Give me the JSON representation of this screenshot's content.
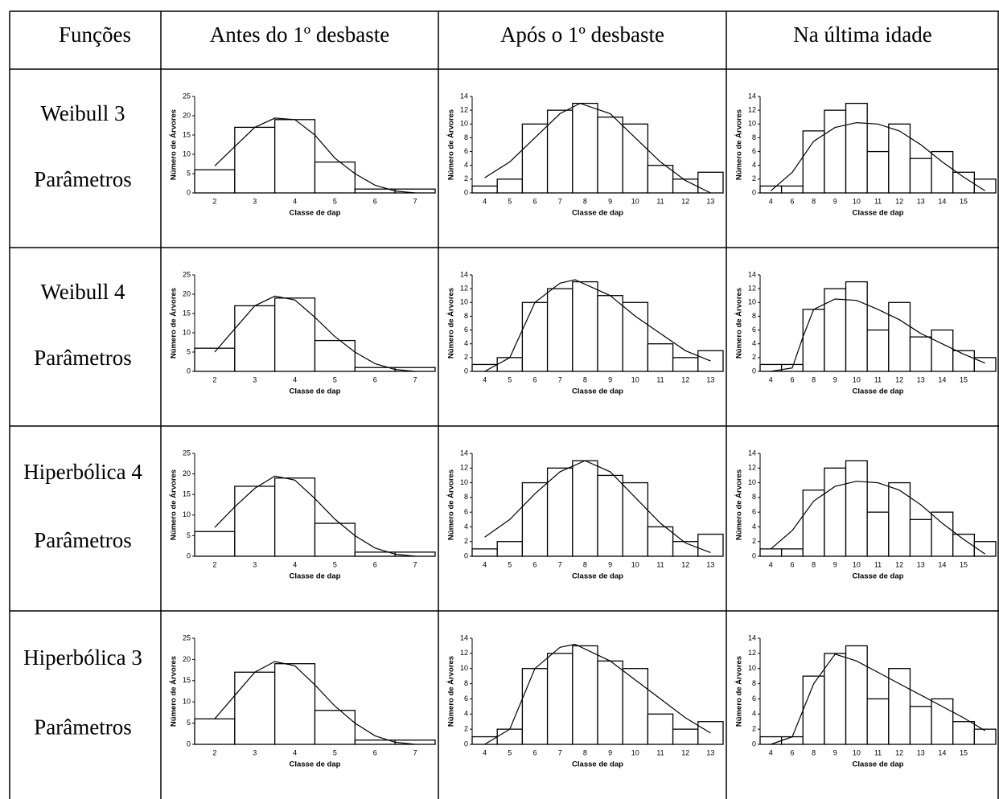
{
  "table": {
    "header": [
      "Funções",
      "Antes do 1º desbaste",
      "Após o 1º desbaste",
      "Na última idade"
    ],
    "rows": [
      {
        "label": [
          "Weibull 3",
          "Parâmetros"
        ],
        "charts": [
          {
            "type": "bar",
            "categories": [
              "2",
              "3",
              "4",
              "5",
              "6",
              "7"
            ],
            "values": [
              6,
              17,
              19,
              8,
              1,
              1
            ],
            "ylim": [
              0,
              25
            ],
            "yticks": [
              0,
              5,
              10,
              15,
              20,
              25
            ],
            "x_label": "Classe de dap",
            "y_label": "Número de Árvores",
            "fit": {
              "x": [
                0,
                0.5,
                1,
                1.5,
                2,
                2.5,
                3,
                3.5,
                4,
                4.5,
                5
              ],
              "values": [
                7,
                12,
                17,
                19.4,
                19,
                15,
                9,
                5,
                2,
                0.5,
                0
              ]
            }
          },
          {
            "type": "bar",
            "categories": [
              "4",
              "5",
              "6",
              "7",
              "8",
              "9",
              "10",
              "11",
              "12",
              "13"
            ],
            "values": [
              1,
              2,
              10,
              12,
              13,
              11,
              10,
              4,
              2,
              3
            ],
            "ylim": [
              0,
              14
            ],
            "yticks": [
              0,
              2,
              4,
              6,
              8,
              10,
              12,
              14
            ],
            "x_label": "Classe de dap",
            "y_label": "Número de Árvores",
            "fit": {
              "x": [
                0,
                1,
                2,
                3,
                3.8,
                5,
                6,
                7,
                8,
                9
              ],
              "values": [
                2.2,
                4.5,
                8,
                11.5,
                13,
                11.5,
                8,
                4.5,
                1.8,
                0
              ]
            }
          },
          {
            "type": "bar",
            "categories": [
              "4",
              "6",
              "8",
              "9",
              "10",
              "11",
              "12",
              "13",
              "14",
              "15",
              null
            ],
            "values": [
              1,
              1,
              9,
              12,
              13,
              6,
              10,
              5,
              6,
              3,
              2
            ],
            "ylim": [
              0,
              14
            ],
            "yticks": [
              0,
              2,
              4,
              6,
              8,
              10,
              12,
              14
            ],
            "x_label": "Classe de dap",
            "y_label": "Número de Árvores",
            "fit": {
              "x": [
                0,
                1,
                2,
                3,
                4,
                5,
                6,
                7,
                8,
                9,
                10
              ],
              "values": [
                0.3,
                3,
                7.5,
                9.5,
                10.2,
                10,
                9,
                7,
                4.5,
                2.3,
                0.3
              ]
            }
          }
        ]
      },
      {
        "label": [
          "Weibull 4",
          "Parâmetros"
        ],
        "charts": [
          {
            "type": "bar",
            "categories": [
              "2",
              "3",
              "4",
              "5",
              "6",
              "7"
            ],
            "values": [
              6,
              17,
              19,
              8,
              1,
              1
            ],
            "ylim": [
              0,
              25
            ],
            "yticks": [
              0,
              5,
              10,
              15,
              20,
              25
            ],
            "x_label": "Classe de dap",
            "y_label": "Número de Árvores",
            "fit": {
              "x": [
                0,
                0.5,
                1,
                1.5,
                2,
                2.5,
                3,
                3.5,
                4,
                4.5,
                5
              ],
              "values": [
                5,
                11,
                17,
                19.5,
                18.5,
                14,
                9,
                5,
                2,
                0.5,
                0
              ]
            }
          },
          {
            "type": "bar",
            "categories": [
              "4",
              "5",
              "6",
              "7",
              "8",
              "9",
              "10",
              "11",
              "12",
              "13"
            ],
            "values": [
              1,
              2,
              10,
              12,
              13,
              11,
              10,
              4,
              2,
              3
            ],
            "ylim": [
              0,
              14
            ],
            "yticks": [
              0,
              2,
              4,
              6,
              8,
              10,
              12,
              14
            ],
            "x_label": "Classe de dap",
            "y_label": "Número de Árvores",
            "fit": {
              "x": [
                0,
                1,
                1.5,
                2,
                3,
                3.6,
                5,
                6,
                7,
                8,
                9
              ],
              "values": [
                0,
                2,
                6,
                10,
                12.8,
                13.3,
                11,
                8,
                5.5,
                3,
                1.5
              ]
            }
          },
          {
            "type": "bar",
            "categories": [
              "4",
              "6",
              "8",
              "9",
              "10",
              "11",
              "12",
              "13",
              "14",
              "15",
              null
            ],
            "values": [
              1,
              1,
              9,
              12,
              13,
              6,
              10,
              5,
              6,
              3,
              2
            ],
            "ylim": [
              0,
              14
            ],
            "yticks": [
              0,
              2,
              4,
              6,
              8,
              10,
              12,
              14
            ],
            "x_label": "Classe de dap",
            "y_label": "Número de Árvores",
            "fit": {
              "x": [
                0,
                1,
                1.5,
                2,
                3,
                4,
                5,
                6,
                7,
                8,
                9,
                10
              ],
              "values": [
                0,
                0.5,
                5,
                9,
                10.5,
                10.3,
                9,
                7.5,
                5.5,
                4,
                2.5,
                1.2
              ]
            }
          }
        ]
      },
      {
        "label": [
          "Hiperbólica 4",
          "Parâmetros"
        ],
        "charts": [
          {
            "type": "bar",
            "categories": [
              "2",
              "3",
              "4",
              "5",
              "6",
              "7"
            ],
            "values": [
              6,
              17,
              19,
              8,
              1,
              1
            ],
            "ylim": [
              0,
              25
            ],
            "yticks": [
              0,
              5,
              10,
              15,
              20,
              25
            ],
            "x_label": "Classe de dap",
            "y_label": "Número de Árvores",
            "fit": {
              "x": [
                0,
                0.5,
                1,
                1.5,
                2,
                2.5,
                3,
                3.5,
                4,
                4.5,
                5
              ],
              "values": [
                7,
                12,
                16.5,
                19.5,
                18.5,
                14,
                9,
                5,
                2,
                0.5,
                0
              ]
            }
          },
          {
            "type": "bar",
            "categories": [
              "4",
              "5",
              "6",
              "7",
              "8",
              "9",
              "10",
              "11",
              "12",
              "13"
            ],
            "values": [
              1,
              2,
              10,
              12,
              13,
              11,
              10,
              4,
              2,
              3
            ],
            "ylim": [
              0,
              14
            ],
            "yticks": [
              0,
              2,
              4,
              6,
              8,
              10,
              12,
              14
            ],
            "x_label": "Classe de dap",
            "y_label": "Número de Árvores",
            "fit": {
              "x": [
                0,
                1,
                2,
                3,
                4,
                5,
                6,
                7,
                8,
                9
              ],
              "values": [
                2.6,
                5,
                8.5,
                11.5,
                13,
                11.5,
                8,
                4.5,
                1.8,
                0.5
              ]
            }
          },
          {
            "type": "bar",
            "categories": [
              "4",
              "6",
              "8",
              "9",
              "10",
              "11",
              "12",
              "13",
              "14",
              "15",
              null
            ],
            "values": [
              1,
              1,
              9,
              12,
              13,
              6,
              10,
              5,
              6,
              3,
              2
            ],
            "ylim": [
              0,
              14
            ],
            "yticks": [
              0,
              2,
              4,
              6,
              8,
              10,
              12,
              14
            ],
            "x_label": "Classe de dap",
            "y_label": "Número de Árvores",
            "fit": {
              "x": [
                0,
                1,
                2,
                3,
                4,
                5,
                6,
                7,
                8,
                9,
                10
              ],
              "values": [
                1,
                3.5,
                7.5,
                9.5,
                10.2,
                10,
                9,
                7,
                4.5,
                2.3,
                0.3
              ]
            }
          }
        ]
      },
      {
        "label": [
          "Hiperbólica 3",
          "Parâmetros"
        ],
        "charts": [
          {
            "type": "bar",
            "categories": [
              "2",
              "3",
              "4",
              "5",
              "6",
              "7"
            ],
            "values": [
              6,
              17,
              19,
              8,
              1,
              1
            ],
            "ylim": [
              0,
              25
            ],
            "yticks": [
              0,
              5,
              10,
              15,
              20,
              25
            ],
            "x_label": "Classe de dap",
            "y_label": "Número de Árvores",
            "fit": {
              "x": [
                0,
                0.5,
                1,
                1.5,
                2,
                2.5,
                3,
                3.5,
                4,
                4.5,
                5
              ],
              "values": [
                6,
                11.5,
                17,
                19.5,
                18.5,
                14,
                9,
                5,
                2,
                0.5,
                0
              ]
            }
          },
          {
            "type": "bar",
            "categories": [
              "4",
              "5",
              "6",
              "7",
              "8",
              "9",
              "10",
              "11",
              "12",
              "13"
            ],
            "values": [
              1,
              2,
              10,
              12,
              13,
              11,
              10,
              4,
              2,
              3
            ],
            "ylim": [
              0,
              14
            ],
            "yticks": [
              0,
              2,
              4,
              6,
              8,
              10,
              12,
              14
            ],
            "x_label": "Classe de dap",
            "y_label": "Número de Árvores",
            "fit": {
              "x": [
                0,
                1,
                1.5,
                2,
                3,
                3.6,
                5,
                6,
                7,
                8,
                9
              ],
              "values": [
                0,
                2,
                6,
                10,
                12.8,
                13.2,
                11,
                8.5,
                6,
                3.5,
                1.5
              ]
            }
          },
          {
            "type": "bar",
            "categories": [
              "4",
              "6",
              "8",
              "9",
              "10",
              "11",
              "12",
              "13",
              "14",
              "15",
              null
            ],
            "values": [
              1,
              1,
              9,
              12,
              13,
              6,
              10,
              5,
              6,
              3,
              2
            ],
            "ylim": [
              0,
              14
            ],
            "yticks": [
              0,
              2,
              4,
              6,
              8,
              10,
              12,
              14
            ],
            "x_label": "Classe de dap",
            "y_label": "Número de Árvores",
            "fit": {
              "x": [
                0,
                1,
                2,
                3,
                4,
                5,
                6,
                7,
                8,
                9,
                10
              ],
              "values": [
                0,
                1,
                8,
                11.9,
                11,
                9.5,
                8,
                6.5,
                5,
                3.5,
                1.8
              ]
            }
          }
        ]
      }
    ]
  }
}
